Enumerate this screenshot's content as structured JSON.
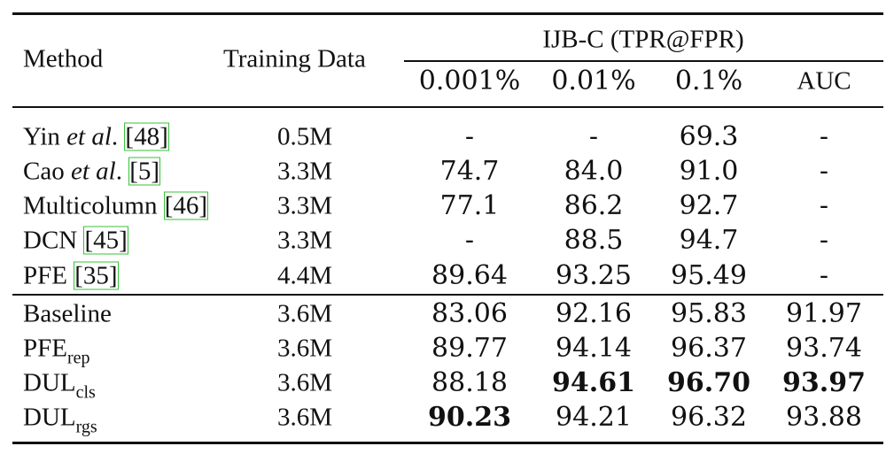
{
  "table": {
    "headers": {
      "method": "Method",
      "training_data": "Training Data",
      "group": "IJB-C (TPR@FPR)",
      "sub": [
        "0.001%",
        "0.01%",
        "0.1%",
        "AUC"
      ]
    },
    "rows_prior": [
      {
        "name_main": "Yin",
        "name_em": "et al",
        "name_tail": ". ",
        "ref": "[48]",
        "data": "0.5M",
        "values": [
          "-",
          "-",
          "69.3",
          "-"
        ]
      },
      {
        "name_main": "Cao",
        "name_em": "et al",
        "name_tail": ". ",
        "ref": "[5]",
        "data": "3.3M",
        "values": [
          "74.7",
          "84.0",
          "91.0",
          "-"
        ]
      },
      {
        "name_main": "Multicolumn",
        "ref": "[46]",
        "data": "3.3M",
        "values": [
          "77.1",
          "86.2",
          "92.7",
          "-"
        ]
      },
      {
        "name_main": "DCN",
        "ref": "[45]",
        "data": "3.3M",
        "values": [
          "-",
          "88.5",
          "94.7",
          "-"
        ]
      },
      {
        "name_main": "PFE",
        "ref": "[35]",
        "data": "4.4M",
        "values": [
          "89.64",
          "93.25",
          "95.49",
          "-"
        ]
      }
    ],
    "rows_ours": [
      {
        "name_main": "Baseline",
        "data": "3.6M",
        "values": [
          "83.06",
          "92.16",
          "95.83",
          "91.97"
        ],
        "bold": [
          false,
          false,
          false,
          false
        ]
      },
      {
        "name_main": "PFE",
        "name_sub": "rep",
        "data": "3.6M",
        "values": [
          "89.77",
          "94.14",
          "96.37",
          "93.74"
        ],
        "bold": [
          false,
          false,
          false,
          false
        ]
      },
      {
        "name_main": "DUL",
        "name_sub": "cls",
        "data": "3.6M",
        "values": [
          "88.18",
          "94.61",
          "96.70",
          "93.97"
        ],
        "bold": [
          false,
          true,
          true,
          true
        ]
      },
      {
        "name_main": "DUL",
        "name_sub": "rgs",
        "data": "3.6M",
        "values": [
          "90.23",
          "94.21",
          "96.32",
          "93.88"
        ],
        "bold": [
          true,
          false,
          false,
          false
        ]
      }
    ]
  }
}
